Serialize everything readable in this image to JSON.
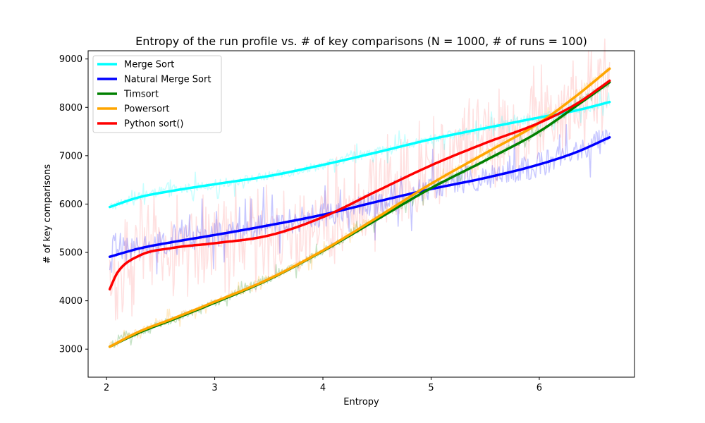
{
  "chart_data": {
    "type": "line",
    "title": "Entropy of the run profile vs. # of key comparisons (N = 1000, # of runs = 100)",
    "xlabel": "Entropy",
    "ylabel": "# of key comparisons",
    "xlim": [
      1.83,
      6.88
    ],
    "ylim": [
      2420,
      9170
    ],
    "xticks": [
      2,
      3,
      4,
      5,
      6
    ],
    "yticks": [
      3000,
      4000,
      5000,
      6000,
      7000,
      8000,
      9000
    ],
    "grid": false,
    "legend_position": "upper-left",
    "series": [
      {
        "name": "Merge Sort",
        "color": "#00ffff",
        "x": [
          2.03,
          2.3,
          2.6,
          3.0,
          3.5,
          4.0,
          4.5,
          5.0,
          5.5,
          6.0,
          6.35,
          6.65
        ],
        "values": [
          5940,
          6140,
          6270,
          6410,
          6580,
          6810,
          7070,
          7340,
          7570,
          7790,
          7940,
          8110
        ],
        "noise": {
          "amp": 160,
          "jumps": [
            [
              2.25,
              150
            ],
            [
              2.55,
              200
            ],
            [
              4.3,
              240
            ],
            [
              4.7,
              200
            ],
            [
              6.3,
              230
            ]
          ]
        }
      },
      {
        "name": "Natural Merge Sort",
        "color": "#0000ff",
        "x": [
          2.03,
          2.3,
          2.6,
          3.0,
          3.5,
          4.0,
          4.5,
          5.0,
          5.5,
          6.0,
          6.35,
          6.65
        ],
        "values": [
          4910,
          5080,
          5210,
          5360,
          5560,
          5780,
          6050,
          6310,
          6540,
          6820,
          7080,
          7380
        ],
        "noise": {
          "amp": 420,
          "jumps": [
            [
              2.1,
              700
            ],
            [
              2.7,
              500
            ],
            [
              4.7,
              400
            ],
            [
              5.3,
              400
            ]
          ]
        }
      },
      {
        "name": "Timsort",
        "color": "#008000",
        "x": [
          2.03,
          2.3,
          2.6,
          3.0,
          3.5,
          4.0,
          4.5,
          5.0,
          5.5,
          6.0,
          6.35,
          6.65
        ],
        "values": [
          3050,
          3340,
          3600,
          3960,
          4440,
          5030,
          5680,
          6330,
          6900,
          7500,
          8040,
          8520
        ],
        "noise": {
          "amp": 130,
          "jumps": [
            [
              2.15,
              250
            ],
            [
              3.4,
              200
            ],
            [
              4.3,
              250
            ],
            [
              6.4,
              200
            ]
          ]
        }
      },
      {
        "name": "Powersort",
        "color": "#ffa500",
        "x": [
          2.03,
          2.3,
          2.6,
          3.0,
          3.5,
          4.0,
          4.5,
          5.0,
          5.5,
          6.0,
          6.35,
          6.65
        ],
        "values": [
          3050,
          3360,
          3620,
          3980,
          4450,
          5040,
          5720,
          6420,
          7050,
          7680,
          8250,
          8800
        ],
        "noise": {
          "amp": 130,
          "jumps": [
            [
              2.15,
              250
            ],
            [
              3.4,
              200
            ],
            [
              4.3,
              250
            ],
            [
              6.4,
              200
            ]
          ]
        }
      },
      {
        "name": "Python sort()",
        "color": "#ff0000",
        "x": [
          2.03,
          2.1,
          2.3,
          2.6,
          3.0,
          3.5,
          4.0,
          4.5,
          5.0,
          5.5,
          6.0,
          6.35,
          6.65
        ],
        "values": [
          4240,
          4580,
          4930,
          5090,
          5190,
          5350,
          5730,
          6270,
          6800,
          7260,
          7680,
          8080,
          8550
        ],
        "noise": {
          "amp": 1300,
          "jumps": []
        }
      }
    ]
  }
}
